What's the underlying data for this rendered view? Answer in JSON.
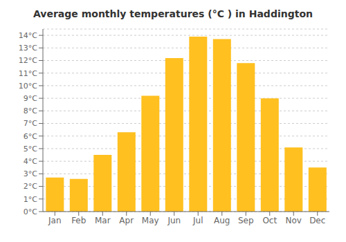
{
  "chart_data": {
    "type": "bar",
    "title": "Average monthly temperatures (°C ) in Haddington",
    "categories": [
      "Jan",
      "Feb",
      "Mar",
      "Apr",
      "May",
      "Jun",
      "Jul",
      "Aug",
      "Sep",
      "Oct",
      "Nov",
      "Dec"
    ],
    "values": [
      2.7,
      2.6,
      4.5,
      6.3,
      9.2,
      12.2,
      13.9,
      13.7,
      11.8,
      9.0,
      5.1,
      3.5
    ],
    "color": "#FFC020",
    "ylim": [
      0,
      14.5
    ],
    "yticks": [
      {
        "value": 0,
        "label": "0°C"
      },
      {
        "value": 1,
        "label": "1°C"
      },
      {
        "value": 2,
        "label": "2°C"
      },
      {
        "value": 3,
        "label": "3°C"
      },
      {
        "value": 4,
        "label": "4°C"
      },
      {
        "value": 5,
        "label": "5°C"
      },
      {
        "value": 6,
        "label": "6°C"
      },
      {
        "value": 7,
        "label": "7°C"
      },
      {
        "value": 8,
        "label": "8°C"
      },
      {
        "value": 9,
        "label": "9°C"
      },
      {
        "value": 10,
        "label": "10°C"
      },
      {
        "value": 11,
        "label": "11°C"
      },
      {
        "value": 12,
        "label": "12°C"
      },
      {
        "value": 13,
        "label": "13°C"
      },
      {
        "value": 14,
        "label": "14°C"
      }
    ],
    "grid": true
  }
}
